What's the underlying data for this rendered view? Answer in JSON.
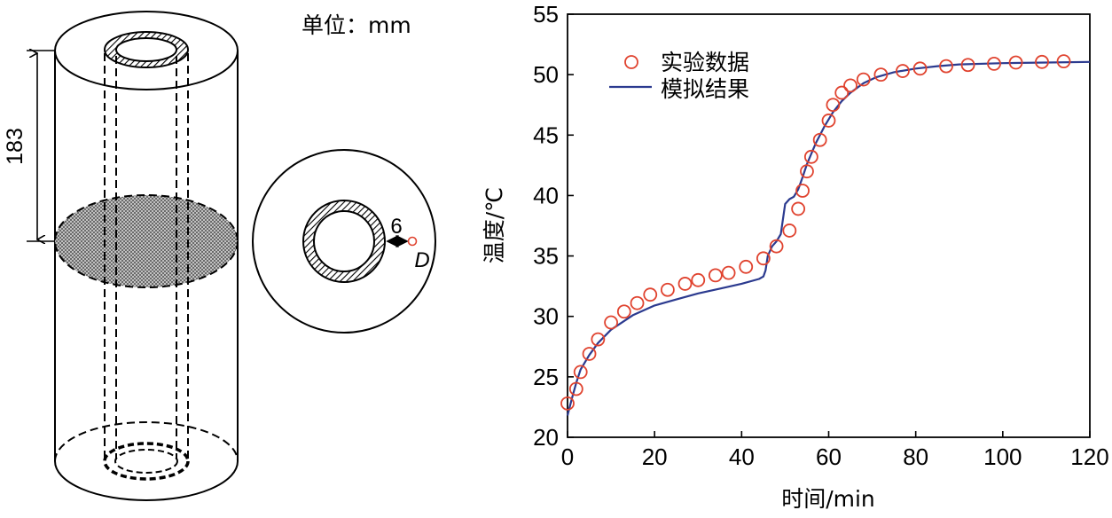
{
  "figure": {
    "unit_label": "单位：mm",
    "dimension_height": "183",
    "dimension_gap": "6",
    "point_label": "D"
  },
  "colors": {
    "experiment_marker": "#e0432f",
    "simulation_line": "#2b3a8f",
    "point_marker": "#e0432f",
    "axis": "#000000"
  },
  "chart_data": {
    "type": "line",
    "title": "",
    "xlabel": "时间/min",
    "ylabel": "温度/℃",
    "xlim": [
      0,
      120
    ],
    "ylim": [
      20,
      55
    ],
    "xticks": [
      0,
      20,
      40,
      60,
      80,
      100,
      120
    ],
    "yticks": [
      20,
      25,
      30,
      35,
      40,
      45,
      50,
      55
    ],
    "grid": false,
    "legend_position": "top-left",
    "series": [
      {
        "name": "实验数据",
        "kind": "scatter",
        "marker": "circle-open",
        "x": [
          0,
          2,
          3,
          5,
          7,
          10,
          13,
          16,
          19,
          23,
          27,
          30,
          34,
          37,
          41,
          45,
          48,
          51,
          53,
          54,
          55,
          56,
          58,
          60,
          61,
          63,
          65,
          68,
          72,
          77,
          81,
          87,
          92,
          98,
          103,
          109,
          114
        ],
        "y": [
          22.8,
          24.0,
          25.4,
          26.9,
          28.1,
          29.5,
          30.4,
          31.1,
          31.8,
          32.2,
          32.7,
          33.0,
          33.4,
          33.6,
          34.1,
          34.8,
          35.8,
          37.1,
          38.9,
          40.4,
          42.0,
          43.2,
          44.6,
          46.2,
          47.5,
          48.5,
          49.1,
          49.6,
          50.0,
          50.3,
          50.5,
          50.7,
          50.8,
          50.9,
          51.0,
          51.05,
          51.1
        ]
      },
      {
        "name": "模拟结果",
        "kind": "line",
        "x": [
          0,
          1,
          2,
          3,
          5,
          7,
          10,
          15,
          20,
          25,
          30,
          35,
          40,
          44,
          45,
          45.5,
          46,
          47,
          48,
          49,
          50,
          51,
          52,
          53,
          54,
          55,
          57,
          59,
          61,
          63,
          65,
          68,
          71,
          75,
          80,
          85,
          90,
          100,
          110,
          120
        ],
        "y": [
          21.8,
          23.2,
          24.5,
          25.6,
          26.8,
          27.8,
          28.9,
          30.1,
          30.9,
          31.4,
          31.9,
          32.3,
          32.7,
          33.1,
          33.3,
          33.8,
          35.0,
          35.8,
          36.2,
          36.8,
          39.3,
          39.7,
          39.9,
          40.5,
          41.5,
          42.6,
          44.3,
          45.7,
          46.9,
          47.8,
          48.5,
          49.3,
          49.8,
          50.2,
          50.5,
          50.7,
          50.85,
          50.95,
          51.0,
          51.05
        ]
      }
    ]
  }
}
